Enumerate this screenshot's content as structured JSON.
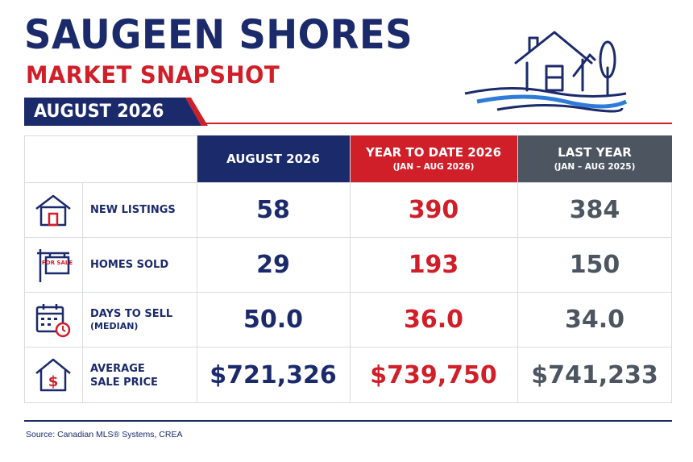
{
  "header": {
    "title": "SAUGEEN SHORES",
    "subtitle": "MARKET SNAPSHOT",
    "period": "AUGUST 2026"
  },
  "colors": {
    "navy": "#1b2a6b",
    "red": "#d11f2a",
    "gray": "#4d5560"
  },
  "columns": [
    {
      "title": "AUGUST 2026",
      "range": ""
    },
    {
      "title": "YEAR TO DATE 2026",
      "range": "(JAN – AUG 2026)"
    },
    {
      "title": "LAST YEAR",
      "range": "(JAN – AUG 2025)"
    }
  ],
  "rows": [
    {
      "icon": "house-icon",
      "label": "NEW LISTINGS",
      "sublabel": "",
      "values": [
        "58",
        "390",
        "384"
      ]
    },
    {
      "icon": "for-sale-sign-icon",
      "label": "HOMES SOLD",
      "sublabel": "",
      "values": [
        "29",
        "193",
        "150"
      ]
    },
    {
      "icon": "calendar-clock-icon",
      "label": "DAYS TO SELL",
      "sublabel": "(MEDIAN)",
      "values": [
        "50.0",
        "36.0",
        "34.0"
      ]
    },
    {
      "icon": "house-dollar-icon",
      "label": "AVERAGE",
      "sublabel": "SALE PRICE",
      "values": [
        "$721,326",
        "$739,750",
        "$741,233"
      ]
    }
  ],
  "footer": {
    "source": "Source: Canadian MLS® Systems, CREA",
    "sign_text": "FOR SALE"
  }
}
